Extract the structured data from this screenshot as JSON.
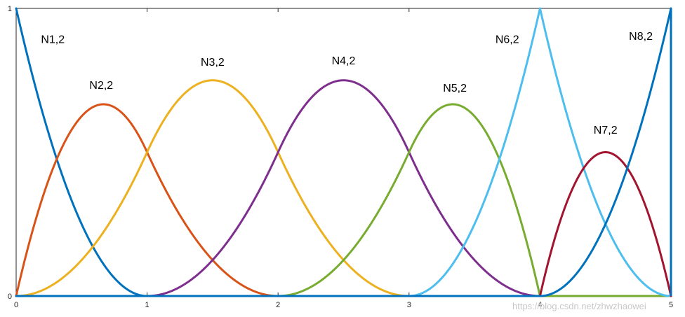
{
  "chart_data": {
    "type": "line",
    "title": "",
    "xlabel": "",
    "ylabel": "",
    "xlim": [
      0,
      5
    ],
    "ylim": [
      0,
      1
    ],
    "grid": false,
    "legend": "none",
    "x_ticks": [
      0,
      1,
      2,
      3,
      4,
      5
    ],
    "x_tick_labels": [
      "0",
      "1",
      "2",
      "3",
      "4",
      "5"
    ],
    "y_ticks": [
      0,
      1
    ],
    "y_tick_labels": [
      "0",
      "1"
    ],
    "knots": [
      0,
      0,
      0,
      1,
      2,
      3,
      4,
      4,
      5,
      5,
      5
    ],
    "degree": 2,
    "series": [
      {
        "label": "N1,2",
        "color": "#0072BD",
        "label_at": [
          0.28,
          0.88
        ]
      },
      {
        "label": "N2,2",
        "color": "#D95319",
        "label_at": [
          0.65,
          0.72
        ]
      },
      {
        "label": "N3,2",
        "color": "#EDB120",
        "label_at": [
          1.5,
          0.8
        ]
      },
      {
        "label": "N4,2",
        "color": "#7E2F8E",
        "label_at": [
          2.5,
          0.805
        ]
      },
      {
        "label": "N5,2",
        "color": "#77AC30",
        "label_at": [
          3.35,
          0.71
        ]
      },
      {
        "label": "N6,2",
        "color": "#4DBEEE",
        "label_at": [
          3.75,
          0.88
        ]
      },
      {
        "label": "N7,2",
        "color": "#A2142F",
        "label_at": [
          4.5,
          0.565
        ]
      },
      {
        "label": "N8,2",
        "color": "#0072BD",
        "label_at": [
          4.77,
          0.89
        ]
      }
    ],
    "watermark": "https://blog.csdn.net/zhwzhaowei"
  }
}
